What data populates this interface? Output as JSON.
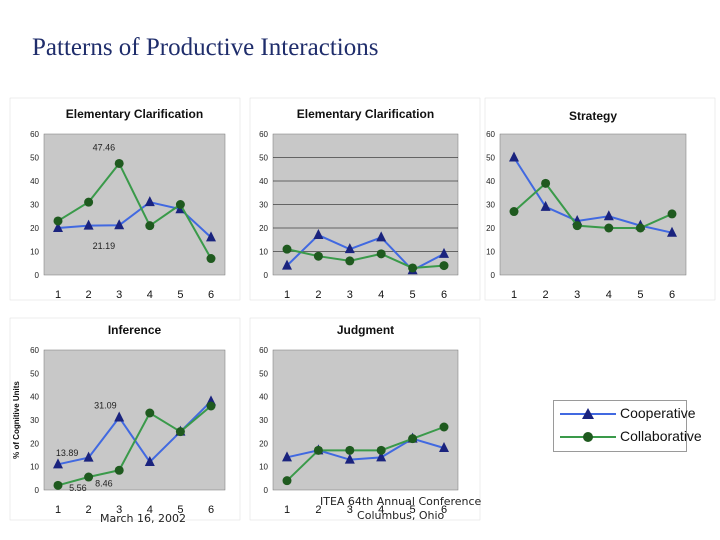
{
  "page": {
    "title": "Patterns of Productive Interactions",
    "footer_date": "March 16, 2002",
    "footer_conf_line1": "ITEA 64th Annual Conference",
    "footer_conf_line2": "Columbus, Ohio"
  },
  "legend": {
    "items": [
      {
        "label": "Cooperative",
        "color": "#4169e1",
        "marker": "triangle"
      },
      {
        "label": "Collaborative",
        "color": "#3a9a4a",
        "marker": "circle"
      }
    ]
  },
  "colors": {
    "plot_background": "#c8c8c8",
    "gridline": "#000000",
    "cooperative_line": "#4169e1",
    "cooperative_marker": "#1a237e",
    "collaborative_line": "#3a9a4a",
    "collaborative_marker": "#1f5a1f"
  },
  "chart_data": [
    {
      "type": "line",
      "title": "Elementary Clarification",
      "x": [
        1,
        2,
        3,
        4,
        5,
        6
      ],
      "ylim": [
        0,
        60
      ],
      "yticks": [
        0,
        10,
        20,
        30,
        40,
        50,
        60
      ],
      "grid": false,
      "series": [
        {
          "name": "Cooperative",
          "values": [
            20,
            21,
            21.19,
            31,
            28,
            16
          ]
        },
        {
          "name": "Collaborative",
          "values": [
            23,
            31,
            47.46,
            21,
            30,
            7
          ]
        }
      ],
      "annotations": [
        {
          "text": "47.46",
          "x": 2.5,
          "y": 53
        },
        {
          "text": "21.19",
          "x": 2.5,
          "y": 11
        }
      ]
    },
    {
      "type": "line",
      "title": "Elementary Clarification",
      "x": [
        1,
        2,
        3,
        4,
        5,
        6
      ],
      "ylim": [
        0,
        60
      ],
      "yticks": [
        0,
        10,
        20,
        30,
        40,
        50,
        60
      ],
      "grid": true,
      "series": [
        {
          "name": "Cooperative",
          "values": [
            4,
            17,
            11,
            16,
            2,
            9
          ]
        },
        {
          "name": "Collaborative",
          "values": [
            11,
            8,
            6,
            9,
            3,
            4
          ]
        }
      ],
      "annotations": []
    },
    {
      "type": "line",
      "title": "Strategy",
      "x": [
        1,
        2,
        3,
        4,
        5,
        6
      ],
      "ylim": [
        0,
        60
      ],
      "yticks": [
        0,
        10,
        20,
        30,
        40,
        50,
        60
      ],
      "grid": false,
      "series": [
        {
          "name": "Cooperative",
          "values": [
            50,
            29,
            23,
            25,
            21,
            18
          ]
        },
        {
          "name": "Collaborative",
          "values": [
            27,
            39,
            21,
            20,
            20,
            26
          ]
        }
      ],
      "annotations": []
    },
    {
      "type": "line",
      "title": "Inference",
      "ylabel": "% of Cognitive Units",
      "x": [
        1,
        2,
        3,
        4,
        5,
        6
      ],
      "ylim": [
        0,
        60
      ],
      "yticks": [
        0,
        10,
        20,
        30,
        40,
        50,
        60
      ],
      "grid": false,
      "series": [
        {
          "name": "Cooperative",
          "values": [
            11,
            13.89,
            31.09,
            12,
            25,
            38
          ]
        },
        {
          "name": "Collaborative",
          "values": [
            2,
            5.56,
            8.46,
            33,
            25,
            36
          ]
        }
      ],
      "annotations": [
        {
          "text": "31.09",
          "x": 2.55,
          "y": 35
        },
        {
          "text": "13.89",
          "x": 1.3,
          "y": 14.5
        },
        {
          "text": "5.56",
          "x": 1.65,
          "y": -0.5
        },
        {
          "text": "8.46",
          "x": 2.5,
          "y": 1.5
        }
      ]
    },
    {
      "type": "line",
      "title": "Judgment",
      "x": [
        1,
        2,
        3,
        4,
        5,
        6
      ],
      "ylim": [
        0,
        60
      ],
      "yticks": [
        0,
        10,
        20,
        30,
        40,
        50,
        60
      ],
      "grid": false,
      "series": [
        {
          "name": "Cooperative",
          "values": [
            14,
            17,
            13,
            14,
            22,
            18
          ]
        },
        {
          "name": "Collaborative",
          "values": [
            4,
            17,
            17,
            17,
            22,
            27
          ]
        }
      ],
      "annotations": []
    }
  ]
}
